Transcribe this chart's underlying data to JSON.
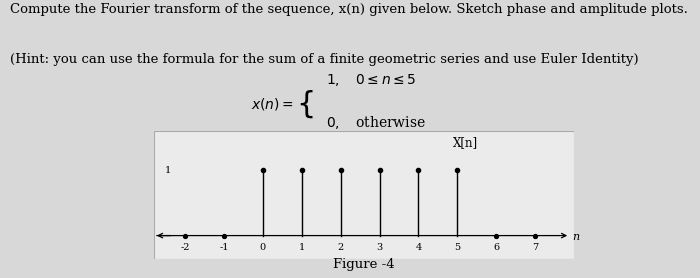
{
  "title_line1": "Compute the Fourier transform of the sequence, x(n) given below. Sketch phase and amplitude plots.",
  "title_line2": "(Hint: you can use the formula for the sum of a finite geometric series and use Euler Identity)",
  "figure_label": "Figure -4",
  "ylabel": "X[n]",
  "stem_positions": [
    0,
    1,
    2,
    3,
    4,
    5
  ],
  "stem_values": [
    1,
    1,
    1,
    1,
    1,
    1
  ],
  "x_ticks": [
    -2,
    -1,
    0,
    1,
    2,
    3,
    4,
    5,
    6,
    7
  ],
  "x_tick_labels": [
    "-2",
    "-1",
    "0",
    "1",
    "2",
    "3",
    "4",
    "5",
    "6",
    "7"
  ],
  "xlim": [
    -2.8,
    8.0
  ],
  "ylim": [
    -0.35,
    1.6
  ],
  "background_color": "#d8d8d8",
  "box_facecolor": "#ebebeb",
  "stem_color": "#000000",
  "marker_color": "#000000",
  "axis_color": "#000000",
  "text_color": "#000000",
  "title_fontsize": 9.5,
  "tick_fontsize": 7,
  "ylabel_fontsize": 8.5,
  "figure_label_fontsize": 9.5,
  "eq_fontsize": 10
}
